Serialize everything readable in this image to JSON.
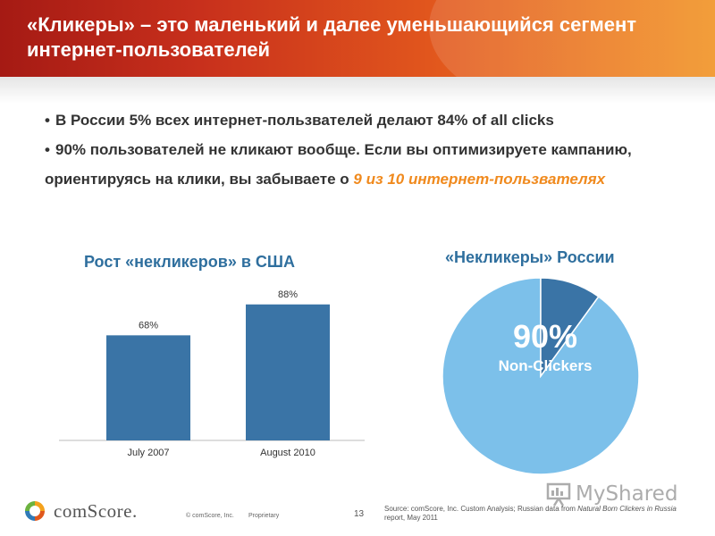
{
  "header": {
    "title": "«Кликеры» – это маленький и далее уменьшающийся сегмент интернет-пользователей"
  },
  "bullets": {
    "item1": "В России 5% всех интернет-пользвателей делают 84% of all clicks",
    "item2_pre": "90% пользователей не кликают вообще. Если вы оптимизируете кампанию, ориентируясь на клики, вы забываете о ",
    "item2_highlight": "9 из 10 интернет-пользвателях"
  },
  "colors": {
    "accent_orange": "#f08a1e",
    "bar_blue": "#3a74a6",
    "pie_light": "#7cc0ea",
    "pie_dark": "#3a74a6",
    "title_blue": "#2f6f9e"
  },
  "chart_data": [
    {
      "type": "bar",
      "title": "Рост «некликеров» в США",
      "categories": [
        "July 2007",
        "August 2010"
      ],
      "values": [
        68,
        88
      ],
      "data_labels": [
        "68%",
        "88%"
      ],
      "ylim": [
        0,
        100
      ],
      "grid": false
    },
    {
      "type": "pie",
      "title": "«Некликеры» России",
      "slices": [
        {
          "label": "Non-Clickers",
          "value": 90
        },
        {
          "label": "",
          "value": 10
        }
      ],
      "center_value": "90%",
      "center_label": "Non-Clickers"
    }
  ],
  "footer": {
    "logo": "comScore.",
    "copyright": "© comScore, Inc.",
    "proprietary": "Proprietary",
    "page": "13",
    "source_pre": "Source: comScore, Inc. Custom Analysis; Russian data from ",
    "source_italic": "Natural Born Clickers in Russia",
    "source_post": " report, May 2011"
  },
  "watermark": {
    "text": "MyShared",
    "icon": "presentation-board-icon"
  }
}
